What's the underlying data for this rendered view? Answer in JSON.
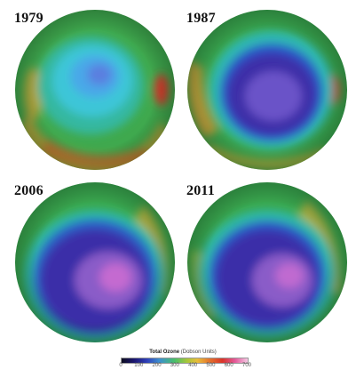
{
  "panels": [
    {
      "year": "1979"
    },
    {
      "year": "1987"
    },
    {
      "year": "2006"
    },
    {
      "year": "2011"
    }
  ],
  "legend": {
    "title_bold": "Total Ozone",
    "title_unit": "(Dobson Units)",
    "ticks": [
      "0",
      "100",
      "200",
      "300",
      "400",
      "500",
      "600",
      "700"
    ]
  }
}
